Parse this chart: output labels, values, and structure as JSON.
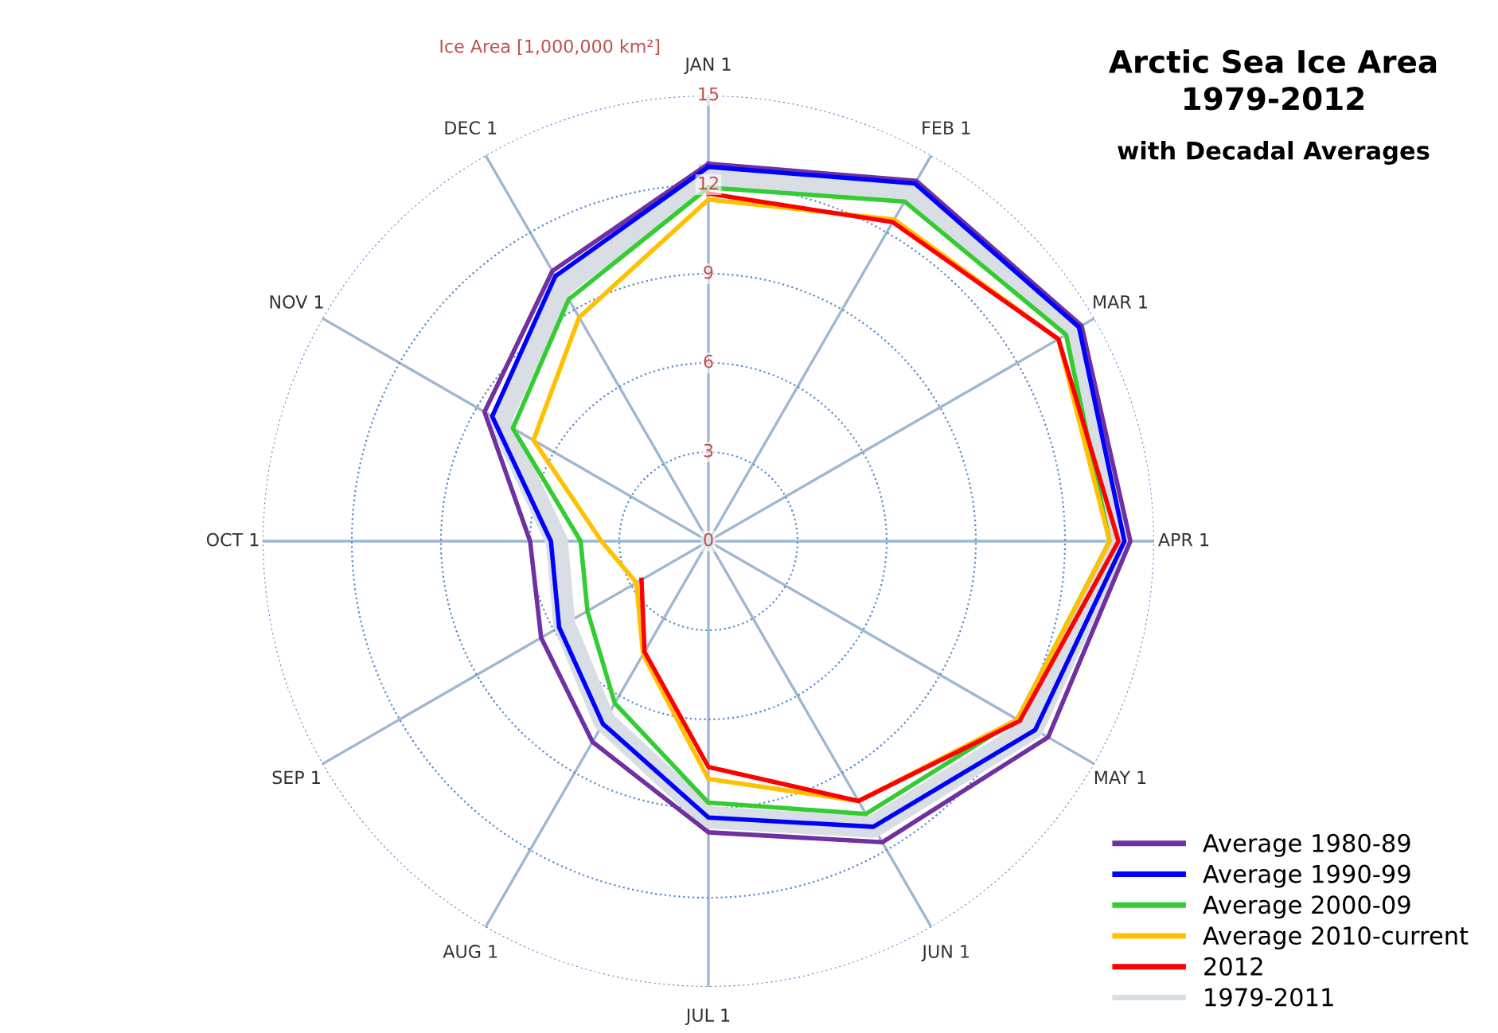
{
  "chart_data": {
    "type": "radar",
    "title": "Arctic Sea Ice Area\n1979-2012",
    "subtitle": "with Decadal Averages",
    "ylabel": "Ice Area [1,000,000 km²]",
    "categories": [
      "JAN 1",
      "FEB 1",
      "MAR 1",
      "APR 1",
      "MAY 1",
      "JUN 1",
      "JUL 1",
      "AUG 1",
      "SEP 1",
      "OCT 1",
      "NOV 1",
      "DEC 1"
    ],
    "ylim": [
      0,
      15
    ],
    "yticks": [
      0,
      3,
      6,
      9,
      12,
      15
    ],
    "grid": true,
    "legend": "bottom right",
    "line_style": "solid",
    "series": [
      {
        "name": "Average 1980-89",
        "color": "#7030a0",
        "values": [
          12.7,
          14.0,
          14.5,
          14.2,
          13.2,
          11.7,
          9.8,
          7.8,
          6.5,
          6.0,
          8.7,
          10.5
        ]
      },
      {
        "name": "Average 1990-99",
        "color": "#0000ff",
        "values": [
          12.6,
          13.9,
          14.4,
          14.0,
          12.7,
          11.1,
          9.3,
          7.1,
          5.8,
          5.3,
          8.4,
          10.3
        ]
      },
      {
        "name": "Average 2000-09",
        "color": "#33cc33",
        "values": [
          11.9,
          13.2,
          13.9,
          13.5,
          12.0,
          10.6,
          8.8,
          6.3,
          4.7,
          4.3,
          7.6,
          9.4
        ]
      },
      {
        "name": "Average 2010-current",
        "color": "#ffc000",
        "values": [
          11.5,
          12.5,
          13.6,
          13.5,
          12.0,
          10.1,
          8.0,
          4.4,
          2.8,
          3.6,
          6.8,
          8.7
        ]
      },
      {
        "name": "2012",
        "color": "#ff0000",
        "values": [
          11.7,
          12.4,
          13.6,
          13.8,
          12.1,
          10.1,
          7.6,
          4.3,
          2.6,
          null,
          null,
          null
        ]
      },
      {
        "name": "1979-2011",
        "color": "#d9dde4",
        "values": [
          12.3,
          13.6,
          14.2,
          13.8,
          12.6,
          11.1,
          9.3,
          7.0,
          5.6,
          5.1,
          8.1,
          9.9
        ]
      }
    ]
  }
}
